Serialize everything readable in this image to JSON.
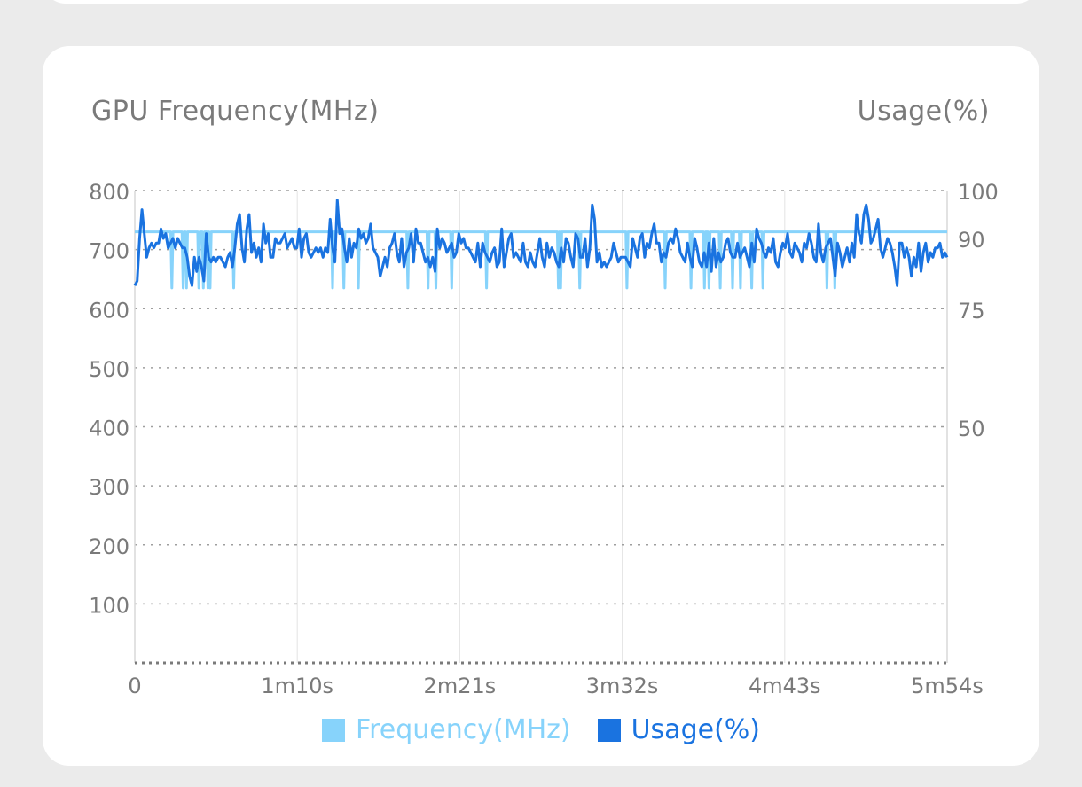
{
  "colors": {
    "frequency": "#87d3fb",
    "usage": "#1a73e0",
    "axis_text": "#7a7a7a",
    "grid": "#9e9e9e"
  },
  "chart_data": {
    "type": "line",
    "title": "GPU Frequency(MHz)",
    "right_title": "Usage(%)",
    "x_ticks": [
      "0",
      "1m10s",
      "2m21s",
      "3m32s",
      "4m43s",
      "5m54s"
    ],
    "x_range_seconds": [
      0,
      354
    ],
    "ylim_left": [
      0,
      800
    ],
    "y_ticks_left": [
      100,
      200,
      300,
      400,
      500,
      600,
      700,
      800
    ],
    "ylim_right": [
      0,
      100
    ],
    "y_ticks_right": [
      50,
      75,
      90,
      100
    ],
    "right_axis_scale": "piecewise",
    "grid": true,
    "legend": "bottom-center",
    "series": [
      {
        "name": "Frequency(MHz)",
        "axis": "left",
        "values": [
          730,
          730,
          730,
          730,
          730,
          730,
          730,
          730,
          730,
          730,
          730,
          730,
          730,
          730,
          730,
          730,
          730,
          730,
          730,
          730,
          730,
          730,
          730,
          730,
          730,
          730,
          730,
          730,
          730,
          730,
          730,
          730,
          730,
          635,
          730,
          730,
          730,
          730,
          730,
          730,
          730,
          730,
          730,
          635,
          730,
          730,
          635,
          730,
          730,
          730,
          730,
          730,
          730,
          730,
          730,
          730,
          730,
          635,
          730,
          730,
          730,
          635,
          730,
          730,
          730,
          635,
          730,
          635,
          730,
          730,
          730,
          730,
          730,
          730,
          730,
          730,
          730,
          730,
          730,
          730,
          730,
          730,
          730,
          730,
          730,
          730,
          730,
          730,
          635,
          730,
          730,
          730,
          730,
          730,
          730,
          730,
          730,
          730,
          730,
          730,
          730,
          730,
          730,
          730,
          730,
          730,
          730,
          730,
          730,
          730,
          730,
          730,
          730,
          730,
          730,
          730,
          730,
          730,
          730,
          730,
          730,
          730,
          730,
          730,
          730,
          730,
          730,
          730,
          730,
          730,
          730,
          730,
          730,
          730,
          730,
          730,
          730,
          730,
          730,
          730,
          730,
          730,
          730,
          730,
          730,
          730,
          730,
          730,
          730,
          730,
          730,
          730,
          730,
          730,
          730,
          730,
          730,
          730,
          730,
          730,
          730,
          730,
          730,
          730,
          730,
          730,
          730,
          730,
          730,
          730,
          730,
          730,
          730,
          730,
          730,
          730,
          635,
          730,
          730,
          730,
          730,
          730,
          730,
          730,
          730,
          730,
          635,
          730,
          730,
          730,
          730,
          730,
          730,
          730,
          730,
          730,
          730,
          730,
          730,
          635,
          730,
          730,
          730,
          730,
          730,
          730,
          730,
          730,
          730,
          730,
          730,
          730,
          730,
          730,
          730,
          730,
          730,
          730,
          730,
          730,
          730,
          730,
          730,
          730,
          730,
          730,
          730,
          730,
          730,
          730,
          730,
          730,
          730,
          730,
          730,
          730,
          730,
          730,
          730,
          730,
          730,
          730,
          730,
          635,
          730,
          730,
          730,
          730,
          730,
          730,
          730,
          730,
          730,
          730,
          730,
          730,
          730,
          730,
          730,
          730,
          730,
          635,
          730,
          730,
          730,
          730,
          730,
          730,
          635,
          730,
          730,
          730,
          730,
          730,
          730,
          730,
          730,
          730,
          730,
          730,
          730,
          730,
          635,
          730,
          730,
          730,
          730,
          730,
          730,
          730,
          730,
          730,
          730,
          730,
          730,
          730,
          730,
          730,
          730,
          730,
          730,
          730,
          730,
          730,
          730,
          730,
          730,
          730,
          730,
          730,
          730,
          730,
          730,
          635,
          730,
          730,
          730,
          730,
          730,
          730,
          730,
          730,
          730,
          730,
          730,
          730,
          730,
          730,
          730,
          730,
          730,
          730,
          730,
          730,
          730,
          730,
          730,
          730,
          730,
          730,
          730,
          730,
          730,
          730,
          730,
          730,
          730,
          730,
          730,
          730,
          730,
          730,
          730,
          730,
          730,
          730,
          730,
          730,
          730,
          730,
          730,
          730,
          730,
          730,
          730,
          730,
          730,
          730,
          730,
          730,
          730,
          730,
          730,
          730,
          730,
          730,
          730,
          635,
          730,
          635,
          730,
          730,
          730,
          730,
          730,
          730,
          730,
          730,
          730,
          730,
          730,
          730,
          730,
          730,
          730,
          730,
          635,
          730,
          730,
          730,
          730,
          730,
          730,
          730,
          730,
          730,
          730,
          730,
          730,
          730,
          730,
          730,
          730,
          730,
          730,
          730,
          730,
          730,
          730,
          730,
          730,
          730,
          730,
          730,
          730,
          730,
          730,
          730,
          730,
          730,
          730,
          730,
          730,
          730,
          730,
          730,
          730,
          730,
          635,
          730,
          730,
          730,
          730,
          730,
          730,
          730,
          730,
          730,
          730,
          730,
          730,
          730,
          730,
          730,
          730,
          730,
          730,
          730,
          730,
          730,
          730,
          730,
          730,
          730,
          730,
          730,
          730,
          730,
          730,
          730,
          730,
          730,
          635,
          730,
          730,
          730,
          730,
          730,
          730,
          730,
          730,
          730,
          730,
          730,
          730,
          730,
          730,
          730,
          730,
          730,
          730,
          730,
          730,
          730,
          730,
          635,
          730,
          730,
          730,
          730,
          730,
          730,
          730,
          730,
          730,
          730,
          730,
          635,
          730,
          730,
          730,
          635,
          730,
          730,
          730,
          730,
          730,
          730,
          730,
          730,
          730,
          635,
          730,
          730,
          730,
          730,
          730,
          730,
          730,
          730,
          730,
          730,
          635,
          730,
          730,
          730,
          730,
          730,
          730,
          635,
          730,
          730,
          730,
          730,
          730,
          730,
          730,
          730,
          730,
          635,
          730,
          730,
          730,
          730,
          730,
          730,
          730,
          730,
          730,
          635,
          730,
          730,
          730,
          730,
          730,
          730,
          730,
          730,
          730,
          730,
          730,
          730,
          730,
          730,
          730,
          730,
          730,
          730,
          730,
          730,
          730,
          730,
          730,
          730,
          730,
          730,
          730,
          730,
          730,
          730,
          730,
          730,
          730,
          730,
          730,
          730,
          730,
          730,
          730,
          730,
          730,
          730,
          730,
          730,
          730,
          730,
          730,
          730,
          730,
          730,
          730,
          730,
          730,
          730,
          730,
          730,
          635,
          730,
          730,
          730,
          730,
          730,
          730,
          635,
          730,
          730,
          730,
          730,
          730,
          730,
          730,
          730,
          730,
          730,
          730,
          730,
          730,
          730,
          730,
          730,
          730,
          730,
          730,
          730,
          730,
          730,
          730,
          730,
          730,
          730,
          730,
          730,
          730,
          730,
          730,
          730,
          730,
          730,
          730,
          730,
          730,
          730,
          730,
          730,
          730,
          730,
          730,
          730,
          730,
          730,
          730,
          730,
          730,
          730,
          730,
          730,
          730,
          730,
          730,
          730,
          730,
          730,
          730,
          730,
          730,
          730,
          730,
          730,
          730,
          730,
          730,
          730,
          730,
          730,
          730,
          730,
          730,
          730,
          730,
          730,
          730,
          730,
          730,
          730,
          730,
          730,
          730,
          730,
          730,
          730,
          730,
          730,
          730,
          730,
          730,
          730,
          730,
          730,
          730,
          730,
          730,
          730,
          730,
          730
        ]
      },
      {
        "name": "Usage(%)",
        "axis": "right",
        "values": [
          80,
          81,
          90,
          96,
          91,
          86,
          88,
          89,
          88,
          89,
          89,
          92,
          90,
          91,
          88,
          89,
          90,
          88,
          90,
          89,
          88,
          88,
          86,
          82,
          80,
          86,
          83,
          86,
          84,
          81,
          91,
          86,
          85,
          86,
          85,
          86,
          86,
          85,
          84,
          86,
          87,
          84,
          88,
          93,
          95,
          88,
          85,
          92,
          95,
          87,
          89,
          86,
          88,
          85,
          93,
          89,
          91,
          86,
          86,
          90,
          89,
          89,
          90,
          91,
          88,
          89,
          90,
          88,
          88,
          92,
          86,
          90,
          91,
          87,
          86,
          87,
          88,
          87,
          88,
          86,
          88,
          87,
          94,
          88,
          85,
          98,
          91,
          92,
          88,
          85,
          90,
          86,
          89,
          88,
          92,
          90,
          91,
          89,
          90,
          93,
          88,
          87,
          86,
          82,
          84,
          86,
          84,
          88,
          89,
          91,
          87,
          85,
          90,
          84,
          87,
          88,
          91,
          85,
          92,
          89,
          89,
          87,
          85,
          86,
          84,
          86,
          83,
          92,
          88,
          90,
          89,
          87,
          88,
          89,
          86,
          87,
          91,
          89,
          90,
          88,
          88,
          87,
          86,
          85,
          89,
          84,
          89,
          87,
          86,
          85,
          87,
          88,
          84,
          85,
          92,
          84,
          87,
          90,
          91,
          86,
          87,
          86,
          85,
          89,
          85,
          84,
          87,
          85,
          84,
          87,
          90,
          86,
          84,
          89,
          86,
          88,
          87,
          85,
          84,
          88,
          85,
          90,
          89,
          86,
          84,
          91,
          90,
          86,
          86,
          90,
          84,
          88,
          97,
          94,
          85,
          87,
          84,
          85,
          84,
          85,
          86,
          89,
          87,
          85,
          86,
          86,
          86,
          85,
          84,
          90,
          88,
          86,
          90,
          91,
          86,
          89,
          88,
          91,
          93,
          89,
          89,
          85,
          87,
          86,
          89,
          90,
          89,
          92,
          90,
          87,
          86,
          85,
          89,
          86,
          84,
          90,
          88,
          85,
          84,
          87,
          84,
          89,
          83,
          90,
          84,
          87,
          85,
          86,
          89,
          90,
          87,
          86,
          86,
          89,
          86,
          87,
          88,
          86,
          84,
          89,
          85,
          92,
          90,
          89,
          87,
          86,
          88,
          87,
          90,
          85,
          84,
          87,
          89,
          88,
          91,
          87,
          86,
          89,
          88,
          87,
          85,
          89,
          88,
          91,
          89,
          86,
          85,
          93,
          87,
          85,
          88,
          89,
          90,
          86,
          82,
          89,
          87,
          84,
          86,
          88,
          85,
          89,
          86,
          95,
          91,
          89,
          95,
          97,
          94,
          89,
          90,
          92,
          94,
          88,
          86,
          88,
          90,
          89,
          87,
          84,
          80,
          89,
          89,
          86,
          88,
          86,
          82,
          86,
          84,
          89,
          83,
          87,
          89,
          85,
          87,
          86,
          88,
          88,
          89,
          86,
          87,
          86
        ],
        "x_seconds_note": "sampled evenly across the time axis"
      }
    ]
  },
  "legend_items": {
    "frequency_label": "Frequency(MHz)",
    "usage_label": "Usage(%)"
  }
}
